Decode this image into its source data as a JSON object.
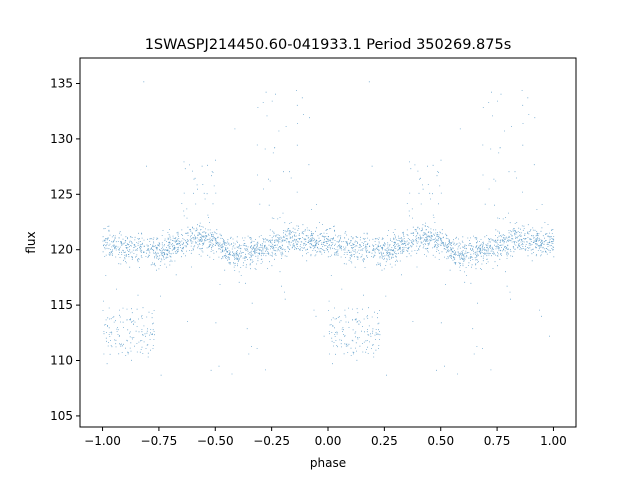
{
  "chart_data": {
    "type": "scatter",
    "title": "1SWASPJ214450.60-041933.1 Period 350269.875s",
    "xlabel": "phase",
    "ylabel": "flux",
    "xlim": [
      -1.1,
      1.1
    ],
    "ylim": [
      104,
      137.3
    ],
    "xticks": [
      -1.0,
      -0.75,
      -0.5,
      -0.25,
      0.0,
      0.25,
      0.5,
      0.75,
      1.0
    ],
    "xtick_labels": [
      "−1.00",
      "−0.75",
      "−0.50",
      "−0.25",
      "0.00",
      "0.25",
      "0.50",
      "0.75",
      "1.00"
    ],
    "yticks": [
      105,
      110,
      115,
      120,
      125,
      130,
      135
    ],
    "ytick_labels": [
      "105",
      "110",
      "115",
      "120",
      "125",
      "130",
      "135"
    ],
    "grid": false,
    "marker_color": "#1f77b4",
    "series": [
      {
        "x_range": [
          -1.0,
          1.0
        ],
        "period_in_phase": 1.0,
        "baseline_profile": [
          {
            "x": 0.0,
            "y": 120.8
          },
          {
            "x": 0.1,
            "y": 120.2
          },
          {
            "x": 0.25,
            "y": 119.8
          },
          {
            "x": 0.38,
            "y": 120.8
          },
          {
            "x": 0.42,
            "y": 121.2
          },
          {
            "x": 0.5,
            "y": 120.6
          },
          {
            "x": 0.58,
            "y": 119.6
          },
          {
            "x": 0.7,
            "y": 120.0
          },
          {
            "x": 0.85,
            "y": 121.0
          },
          {
            "x": 1.0,
            "y": 120.8
          }
        ],
        "dip_region": {
          "x_start": 0.0,
          "x_end": 0.23,
          "y_center": 112.5
        },
        "flare_regions": [
          {
            "x_start": 0.35,
            "x_end": 0.52,
            "y_max": 128
          },
          {
            "x_start": 0.68,
            "x_end": 0.92,
            "y_max": 135
          }
        ]
      }
    ]
  }
}
